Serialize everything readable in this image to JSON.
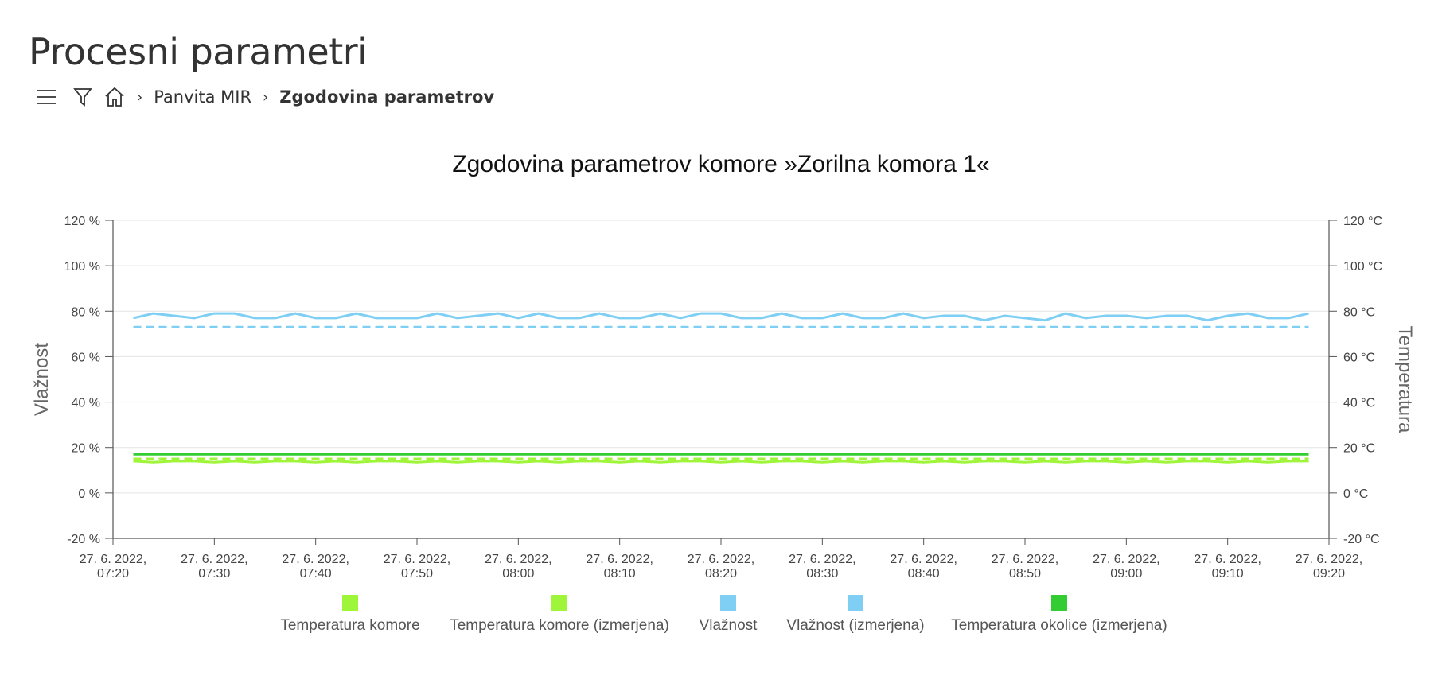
{
  "page": {
    "title": "Procesni parametri"
  },
  "toolbar": {
    "menu_icon": "hamburger-menu-icon",
    "filter_icon": "filter-icon",
    "home_icon": "home-icon"
  },
  "breadcrumb": {
    "items": [
      "Panvita MIR",
      "Zgodovina parametrov"
    ]
  },
  "chart_data": {
    "type": "line",
    "title": "Zgodovina parametrov komore »Zorilna komora 1«",
    "y_left_label": "Vlažnost",
    "y_right_label": "Temperatura",
    "y_left_ticks": [
      "120 %",
      "100 %",
      "80 %",
      "60 %",
      "40 %",
      "20 %",
      "0 %",
      "-20 %"
    ],
    "y_right_ticks": [
      "120 °C",
      "100 °C",
      "80 °C",
      "60 °C",
      "40 °C",
      "20 °C",
      "0 °C",
      "-20 °C"
    ],
    "ylim": [
      -20,
      120
    ],
    "grid": true,
    "x_ticks": [
      [
        "27. 6. 2022,",
        "07:20"
      ],
      [
        "27. 6. 2022,",
        "07:30"
      ],
      [
        "27. 6. 2022,",
        "07:40"
      ],
      [
        "27. 6. 2022,",
        "07:50"
      ],
      [
        "27. 6. 2022,",
        "08:00"
      ],
      [
        "27. 6. 2022,",
        "08:10"
      ],
      [
        "27. 6. 2022,",
        "08:20"
      ],
      [
        "27. 6. 2022,",
        "08:30"
      ],
      [
        "27. 6. 2022,",
        "08:40"
      ],
      [
        "27. 6. 2022,",
        "08:50"
      ],
      [
        "27. 6. 2022,",
        "09:00"
      ],
      [
        "27. 6. 2022,",
        "09:10"
      ],
      [
        "27. 6. 2022,",
        "09:20"
      ]
    ],
    "x_range_minutes": [
      440,
      560
    ],
    "x_start_minute": 442,
    "x_step_minutes": 2,
    "legend_placement": "bottom-center",
    "series": [
      {
        "name": "Temperatura komore",
        "color": "#9ef53a",
        "dash": "dashed",
        "axis": "right",
        "values": [
          15,
          15,
          15,
          15,
          15,
          15,
          15,
          15,
          15,
          15,
          15,
          15,
          15,
          15,
          15,
          15,
          15,
          15,
          15,
          15,
          15,
          15,
          15,
          15,
          15,
          15,
          15,
          15,
          15,
          15,
          15,
          15,
          15,
          15,
          15,
          15,
          15,
          15,
          15,
          15,
          15,
          15,
          15,
          15,
          15,
          15,
          15,
          15,
          15,
          15,
          15,
          15,
          15,
          15,
          15,
          15,
          15,
          15,
          15
        ]
      },
      {
        "name": "Temperatura komore (izmerjena)",
        "color": "#9ef53a",
        "dash": "solid",
        "axis": "right",
        "values": [
          14,
          13.5,
          14,
          14,
          13.5,
          14,
          13.5,
          14,
          14,
          13.5,
          14,
          13.5,
          14,
          14,
          13.5,
          14,
          13.5,
          14,
          14,
          13.5,
          14,
          13.5,
          14,
          14,
          13.5,
          14,
          13.5,
          14,
          14,
          13.5,
          14,
          13.5,
          14,
          14,
          13.5,
          14,
          13.5,
          14,
          14,
          13.5,
          14,
          13.5,
          14,
          14,
          13.5,
          14,
          13.5,
          14,
          14,
          13.5,
          14,
          13.5,
          14,
          14,
          13.5,
          14,
          13.5,
          14,
          14
        ]
      },
      {
        "name": "Vlažnost",
        "color": "#7fcff5",
        "dash": "dashed",
        "axis": "left",
        "values": [
          73,
          73,
          73,
          73,
          73,
          73,
          73,
          73,
          73,
          73,
          73,
          73,
          73,
          73,
          73,
          73,
          73,
          73,
          73,
          73,
          73,
          73,
          73,
          73,
          73,
          73,
          73,
          73,
          73,
          73,
          73,
          73,
          73,
          73,
          73,
          73,
          73,
          73,
          73,
          73,
          73,
          73,
          73,
          73,
          73,
          73,
          73,
          73,
          73,
          73,
          73,
          73,
          73,
          73,
          73,
          73,
          73,
          73,
          73
        ]
      },
      {
        "name": "Vlažnost (izmerjena)",
        "color": "#7fcff5",
        "dash": "solid",
        "axis": "left",
        "values": [
          77,
          79,
          78,
          77,
          79,
          79,
          77,
          77,
          79,
          77,
          77,
          79,
          77,
          77,
          77,
          79,
          77,
          78,
          79,
          77,
          79,
          77,
          77,
          79,
          77,
          77,
          79,
          77,
          79,
          79,
          77,
          77,
          79,
          77,
          77,
          79,
          77,
          77,
          79,
          77,
          78,
          78,
          76,
          78,
          77,
          76,
          79,
          77,
          78,
          78,
          77,
          78,
          78,
          76,
          78,
          79,
          77,
          77,
          79
        ]
      },
      {
        "name": "Temperatura okolice (izmerjena)",
        "color": "#33cc33",
        "dash": "solid",
        "axis": "right",
        "values": [
          17,
          17,
          17,
          17,
          17,
          17,
          17,
          17,
          17,
          17,
          17,
          17,
          17,
          17,
          17,
          17,
          17,
          17,
          17,
          17,
          17,
          17,
          17,
          17,
          17,
          17,
          17,
          17,
          17,
          17,
          17,
          17,
          17,
          17,
          17,
          17,
          17,
          17,
          17,
          17,
          17,
          17,
          17,
          17,
          17,
          17,
          17,
          17,
          17,
          17,
          17,
          17,
          17,
          17,
          17,
          17,
          17,
          17,
          17
        ]
      }
    ]
  }
}
